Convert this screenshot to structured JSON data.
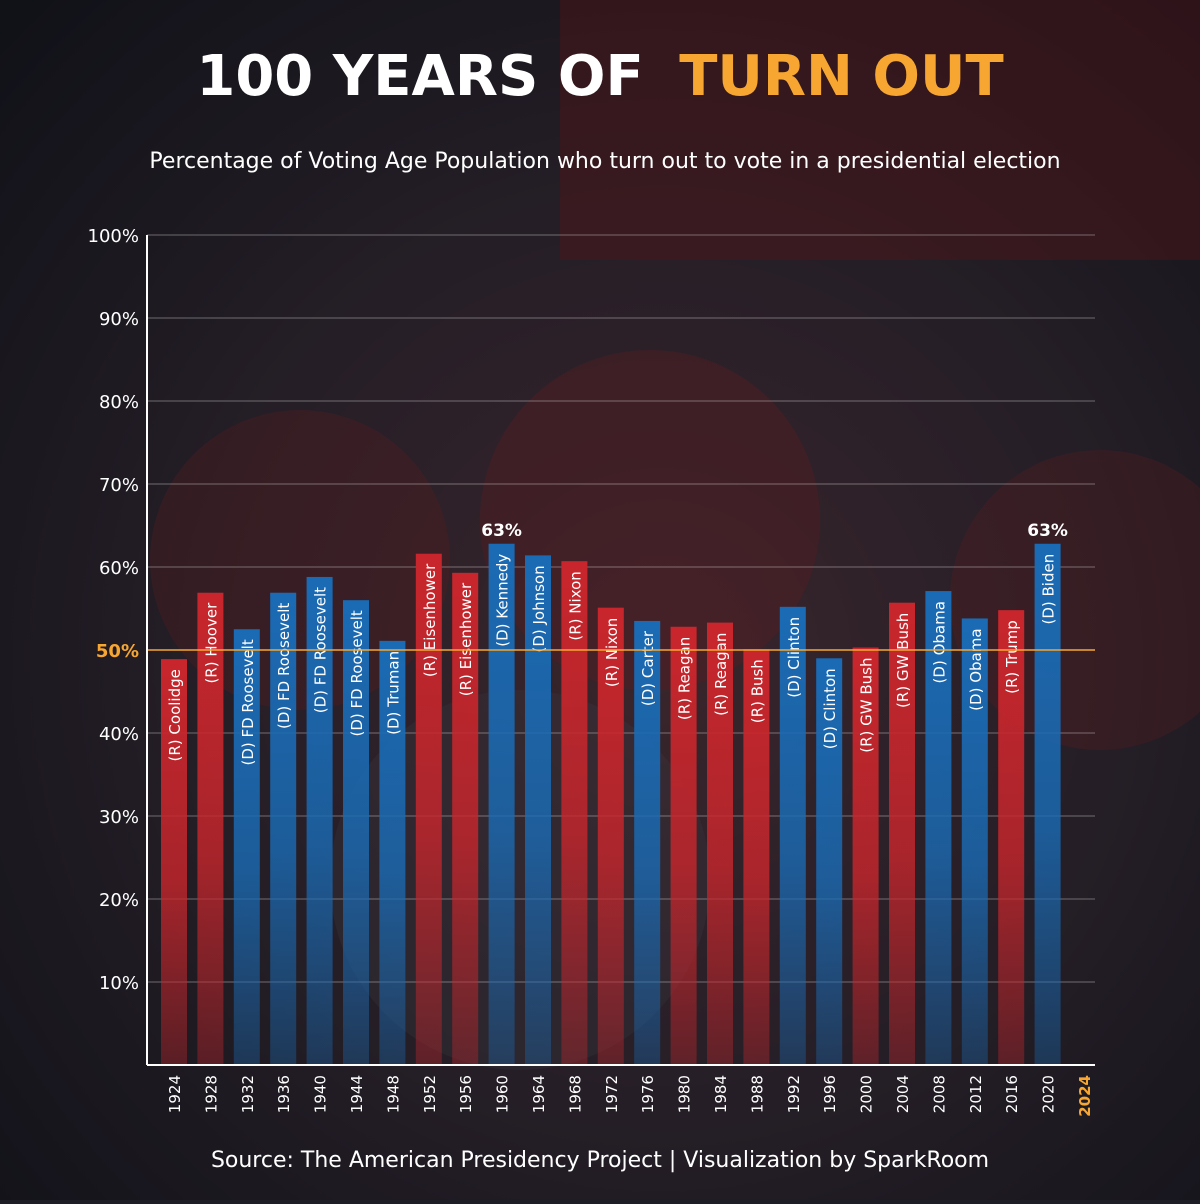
{
  "chart_data": {
    "type": "bar",
    "title": "100 YEARS OF",
    "title_highlight": "TURN OUT",
    "subtitle": "Percentage of Voting Age Population who turn out to vote in a presidential election",
    "source": "Source: The American Presidency Project  |  Visualization by SparkRoom",
    "categories": [
      "1924",
      "1928",
      "1932",
      "1936",
      "1940",
      "1944",
      "1948",
      "1952",
      "1956",
      "1960",
      "1964",
      "1968",
      "1972",
      "1976",
      "1980",
      "1984",
      "1988",
      "1992",
      "1996",
      "2000",
      "2004",
      "2008",
      "2012",
      "2016",
      "2020",
      "2024"
    ],
    "values": [
      48.9,
      56.9,
      52.5,
      56.9,
      58.8,
      56,
      51.1,
      61.6,
      59.3,
      62.8,
      61.4,
      60.7,
      55.1,
      53.5,
      52.8,
      53.3,
      50.1,
      55.2,
      49,
      50.3,
      55.7,
      57.1,
      53.8,
      54.8,
      62.8,
      null
    ],
    "value_labels": [
      null,
      null,
      null,
      null,
      null,
      null,
      null,
      null,
      null,
      "63%",
      null,
      null,
      null,
      null,
      null,
      null,
      null,
      null,
      null,
      null,
      null,
      null,
      null,
      null,
      "63%",
      null
    ],
    "bar_labels": [
      "(R) Coolidge",
      "(R) Hoover",
      "(D) FD Roosevelt",
      "(D) FD Roosevelt",
      "(D) FD Roosevelt",
      "(D) FD Roosevelt",
      "(D) Truman",
      "(R) Eisenhower",
      "(R) Eisenhower",
      "(D) Kennedy",
      "(D) Johnson",
      "(R) Nixon",
      "(R) Nixon",
      "(D) Carter",
      "(R) Reagan",
      "(R) Reagan",
      "(R) Bush",
      "(D) Clinton",
      "(D) Clinton",
      "(R) GW Bush",
      "(R) GW Bush",
      "(D) Obama",
      "(D) Obama",
      "(R) Trump",
      "(D) Biden",
      null
    ],
    "colors": [
      "#c8262c",
      "#c8262c",
      "#1a6bb5",
      "#1a6bb5",
      "#1a6bb5",
      "#1a6bb5",
      "#1a6bb5",
      "#c8262c",
      "#c8262c",
      "#1a6bb5",
      "#1a6bb5",
      "#c8262c",
      "#c8262c",
      "#1a6bb5",
      "#c8262c",
      "#c8262c",
      "#c8262c",
      "#1a6bb5",
      "#1a6bb5",
      "#c8262c",
      "#c8262c",
      "#1a6bb5",
      "#1a6bb5",
      "#c8262c",
      "#1a6bb5",
      null
    ],
    "ylim": [
      0,
      100
    ],
    "yticks": [
      {
        "value": 10,
        "label": "10%"
      },
      {
        "value": 20,
        "label": "20%"
      },
      {
        "value": 30,
        "label": "30%"
      },
      {
        "value": 40,
        "label": "40%"
      },
      {
        "value": 50,
        "label": "50%"
      },
      {
        "value": 60,
        "label": "60%"
      },
      {
        "value": 70,
        "label": "70%"
      },
      {
        "value": 80,
        "label": "80%"
      },
      {
        "value": 90,
        "label": "90%"
      },
      {
        "value": 100,
        "label": "100%"
      }
    ],
    "grid": true,
    "reference_line": {
      "value": 50,
      "color": "#f7a731"
    }
  }
}
